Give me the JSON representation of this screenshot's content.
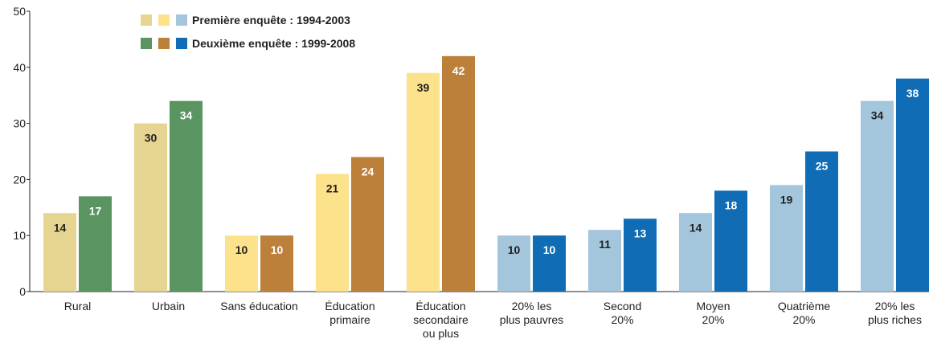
{
  "chart_data": {
    "type": "bar",
    "ylim": [
      0,
      50
    ],
    "yticks": [
      "0",
      "10",
      "20",
      "30",
      "40",
      "50"
    ],
    "legend": {
      "placement": "top-left",
      "entries": [
        {
          "label": "Première enquête : 1994-2003",
          "colors": [
            "#e6d591",
            "#fde28c",
            "#a3c6dd"
          ]
        },
        {
          "label": "Deuxième enquête : 1999-2008",
          "colors": [
            "#5a9460",
            "#bc803b",
            "#0f6cb5"
          ]
        }
      ]
    },
    "categories": [
      {
        "label": [
          "Rural"
        ],
        "values": [
          14,
          17
        ],
        "colors": [
          "#e6d591",
          "#5a9460"
        ]
      },
      {
        "label": [
          "Urbain"
        ],
        "values": [
          30,
          34
        ],
        "colors": [
          "#e6d591",
          "#5a9460"
        ]
      },
      {
        "label": [
          "Sans éducation"
        ],
        "values": [
          10,
          10
        ],
        "colors": [
          "#fde28c",
          "#bc803b"
        ]
      },
      {
        "label": [
          "Éducation",
          "primaire"
        ],
        "values": [
          21,
          24
        ],
        "colors": [
          "#fde28c",
          "#bc803b"
        ]
      },
      {
        "label": [
          "Éducation",
          "secondaire",
          "ou plus"
        ],
        "values": [
          39,
          42
        ],
        "colors": [
          "#fde28c",
          "#bc803b"
        ]
      },
      {
        "label": [
          "20% les",
          "plus pauvres"
        ],
        "values": [
          10,
          10
        ],
        "colors": [
          "#a3c6dd",
          "#0f6cb5"
        ]
      },
      {
        "label": [
          "Second",
          "20%"
        ],
        "values": [
          11,
          13
        ],
        "colors": [
          "#a3c6dd",
          "#0f6cb5"
        ]
      },
      {
        "label": [
          "Moyen",
          "20%"
        ],
        "values": [
          14,
          18
        ],
        "colors": [
          "#a3c6dd",
          "#0f6cb5"
        ]
      },
      {
        "label": [
          "Quatrième",
          "20%"
        ],
        "values": [
          19,
          25
        ],
        "colors": [
          "#a3c6dd",
          "#0f6cb5"
        ]
      },
      {
        "label": [
          "20% les",
          "plus riches"
        ],
        "values": [
          34,
          38
        ],
        "colors": [
          "#a3c6dd",
          "#0f6cb5"
        ]
      }
    ],
    "grid": false
  }
}
